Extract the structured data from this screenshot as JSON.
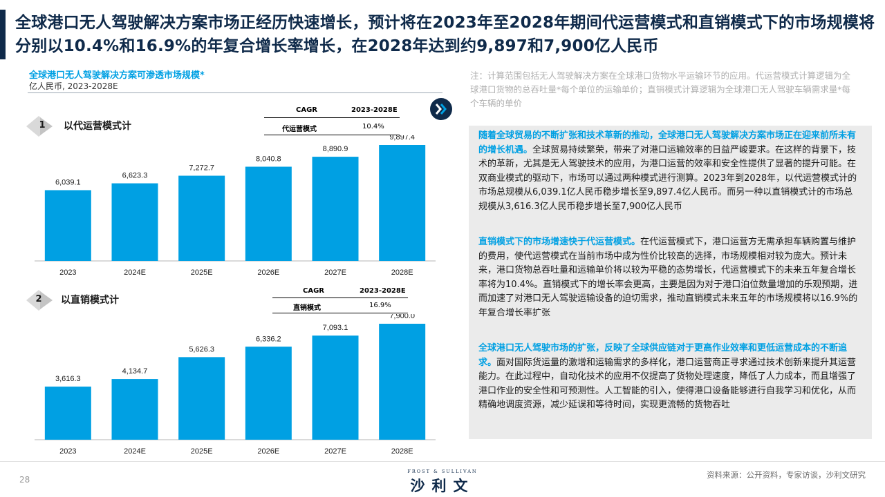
{
  "header": {
    "title": "全球港口无人驾驶解决方案市场正经历快速增长，预计将在2023年至2028年期间代运营模式和直销模式下的市场规模将分别以10.4%和16.9%的年复合增长率增长，在2028年达到约9,897和7,900亿人民币"
  },
  "chart_header": {
    "title": "全球港口无人驾驶解决方案可渗透市场规模*",
    "unit": "亿人民币, 2023-2028E"
  },
  "note": "注：计算范围包括无人驾驶解决方案在全球港口货物水平运输环节的应用。代运营模式计算逻辑为全球港口货物的总吞吐量*每个单位的运输单价；直销模式计算逻辑为全球港口无人驾驶车辆需求量*每个车辆的单价",
  "colors": {
    "bar": "#00a0e3",
    "brand_navy": "#0f2a4a",
    "highlight": "#00a0e3",
    "panel": "#ebebeb"
  },
  "icons": {
    "next": "double-chevron-right-icon",
    "section_marker": "diamond-icon"
  },
  "sections": [
    {
      "number": "1",
      "label": "以代运营模式计",
      "cagr_header": [
        "CAGR",
        "2023-2028E"
      ],
      "cagr_row": [
        "代运营模式",
        "10.4%"
      ]
    },
    {
      "number": "2",
      "label": "以直销模式计",
      "cagr_header": [
        "CAGR",
        "2023-2028E"
      ],
      "cagr_row": [
        "直销模式",
        "16.9%"
      ]
    }
  ],
  "chart_data": [
    {
      "type": "bar",
      "title": "以代运营模式计",
      "categories": [
        "2023",
        "2024E",
        "2025E",
        "2026E",
        "2027E",
        "2028E"
      ],
      "values": [
        6039.1,
        6623.3,
        7272.7,
        8040.8,
        8890.9,
        9897.4
      ],
      "labels": [
        "6,039.1",
        "6,623.3",
        "7,272.7",
        "8,040.8",
        "8,890.9",
        "9,897.4"
      ],
      "ylim": [
        0,
        9897.4
      ],
      "grid": false,
      "unit": "亿人民币"
    },
    {
      "type": "bar",
      "title": "以直销模式计",
      "categories": [
        "2023",
        "2024E",
        "2025E",
        "2026E",
        "2027E",
        "2028E"
      ],
      "values": [
        3616.3,
        4134.7,
        5626.3,
        6336.2,
        7093.1,
        7900.0
      ],
      "labels": [
        "3,616.3",
        "4,134.7",
        "5,626.3",
        "6,336.2",
        "7,093.1",
        "7,900.0"
      ],
      "ylim": [
        0,
        7900.0
      ],
      "grid": false,
      "unit": "亿人民币"
    }
  ],
  "paragraphs": [
    {
      "highlight": "随着全球贸易的不断扩张和技术革新的推动，全球港口无人驾驶解决方案市场正在迎来前所未有的增长机遇。",
      "body": "全球贸易持续繁荣，带来了对港口运输效率的日益严峻要求。在这样的背景下，技术的革新，尤其是无人驾驶技术的应用，为港口运营的效率和安全性提供了显著的提升可能。在双商业模式的驱动下，市场可以通过两种模式进行测算。2023年到2028年，以代运营模式计的市场总规模从6,039.1亿人民币稳步增长至9,897.4亿人民币。而另一种以直销模式计的市场总规模从3,616.3亿人民币稳步增长至7,900亿人民币"
    },
    {
      "highlight": "直销模式下的市场增速快于代运营模式。",
      "body": "在代运营模式下，港口运营方无需承担车辆购置与维护的费用，使代运营模式在当前市场中成为性价比较高的选择，市场规模相对较为庞大。预计未来，港口货物总吞吐量和运输单价将以较为平稳的态势增长，代运营模式下的未来五年复合增长率将为10.4%。直销模式下的增长率会更高，主要是因为对于港口泊位数量增加的乐观预期，进而加速了对港口无人驾驶运输设备的迫切需求，推动直销模式未来五年的市场规模将以16.9%的年复合增长率扩张"
    },
    {
      "highlight": "全球港口无人驾驶市场的扩张，反映了全球供应链对于更高作业效率和更低运营成本的不断追求。",
      "body": "面对国际货运量的激增和运输需求的多样化，港口运营商正寻求通过技术创新来提升其运营能力。在此过程中，自动化技术的应用不仅提高了货物处理速度，降低了人力成本，而且增强了港口作业的安全性和可预测性。人工智能的引入，使得港口设备能够进行自我学习和优化，从而精确地调度资源，减少延误和等待时间，实现更流畅的货物吞吐"
    }
  ],
  "footer": {
    "page": "28",
    "logo_top": "FROST & SULLIVAN",
    "logo_main": "沙利文",
    "source": "资料来源：公开资料，专家访谈，沙利文研究"
  }
}
